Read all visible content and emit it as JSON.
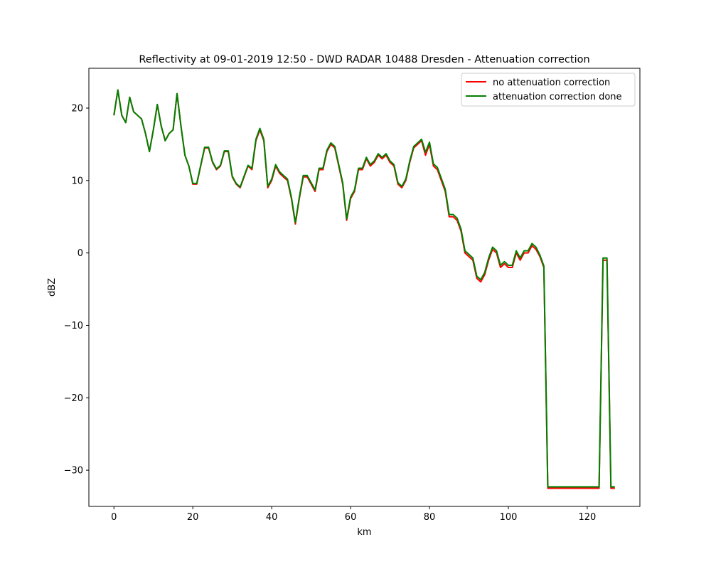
{
  "chart_data": {
    "type": "line",
    "title": "Reflectivity at 09-01-2019 12:50 - DWD RADAR 10488 Dresden - Attenuation correction",
    "xlabel": "km",
    "ylabel": "dBZ",
    "xlim": [
      -6.35,
      133.35
    ],
    "ylim": [
      -35,
      25.5
    ],
    "xticks": [
      0,
      20,
      40,
      60,
      80,
      100,
      120
    ],
    "yticks": [
      -30,
      -20,
      -10,
      0,
      10,
      20
    ],
    "xtick_labels": [
      "0",
      "20",
      "40",
      "60",
      "80",
      "100",
      "120"
    ],
    "ytick_labels": [
      "−30",
      "−20",
      "−10",
      "0",
      "10",
      "20"
    ],
    "grid": false,
    "legend_position": "top-right",
    "x": [
      0,
      1,
      2,
      3,
      4,
      5,
      6,
      7,
      8,
      9,
      10,
      11,
      12,
      13,
      14,
      15,
      16,
      17,
      18,
      19,
      20,
      21,
      22,
      23,
      24,
      25,
      26,
      27,
      28,
      29,
      30,
      31,
      32,
      33,
      34,
      35,
      36,
      37,
      38,
      39,
      40,
      41,
      42,
      43,
      44,
      45,
      46,
      47,
      48,
      49,
      50,
      51,
      52,
      53,
      54,
      55,
      56,
      57,
      58,
      59,
      60,
      61,
      62,
      63,
      64,
      65,
      66,
      67,
      68,
      69,
      70,
      71,
      72,
      73,
      74,
      75,
      76,
      77,
      78,
      79,
      80,
      81,
      82,
      83,
      84,
      85,
      86,
      87,
      88,
      89,
      90,
      91,
      92,
      93,
      94,
      95,
      96,
      97,
      98,
      99,
      100,
      101,
      102,
      103,
      104,
      105,
      106,
      107,
      108,
      109,
      110,
      111,
      112,
      113,
      114,
      115,
      116,
      117,
      118,
      119,
      120,
      121,
      122,
      123,
      124,
      125,
      126,
      127
    ],
    "series": [
      {
        "name": "no attenuation correction",
        "color": "#ff0000",
        "values": [
          19.0,
          22.5,
          19.0,
          18.0,
          21.5,
          19.5,
          19.0,
          18.5,
          16.5,
          14.0,
          17.0,
          20.5,
          17.5,
          15.5,
          16.5,
          17.0,
          22.0,
          17.5,
          13.5,
          12.0,
          9.5,
          9.5,
          12.0,
          14.5,
          14.5,
          12.5,
          11.5,
          12.0,
          14.0,
          14.0,
          10.5,
          9.5,
          9.0,
          10.5,
          12.0,
          11.5,
          15.5,
          17.0,
          15.5,
          9.0,
          10.0,
          12.0,
          11.0,
          10.5,
          10.0,
          7.5,
          4.0,
          7.5,
          10.5,
          10.5,
          9.5,
          8.5,
          11.5,
          11.5,
          14.0,
          15.0,
          14.5,
          12.0,
          9.5,
          4.5,
          7.5,
          8.5,
          11.5,
          11.5,
          13.0,
          12.0,
          12.5,
          13.5,
          13.0,
          13.5,
          12.5,
          12.0,
          9.5,
          9.0,
          10.0,
          12.5,
          14.5,
          15.0,
          15.5,
          13.5,
          15.0,
          12.0,
          11.5,
          10.0,
          8.5,
          5.0,
          5.0,
          4.5,
          3.0,
          0.0,
          -0.5,
          -1.0,
          -3.5,
          -4.0,
          -3.0,
          -1.0,
          0.5,
          0.0,
          -2.0,
          -1.5,
          -2.0,
          -2.0,
          0.0,
          -1.0,
          0.0,
          0.0,
          1.0,
          0.5,
          -0.5,
          -2.0,
          -32.5,
          -32.5,
          -32.5,
          -32.5,
          -32.5,
          -32.5,
          -32.5,
          -32.5,
          -32.5,
          -32.5,
          -32.5,
          -32.5,
          -32.5,
          -32.5,
          -1.0,
          -1.0,
          -32.5,
          -32.5
        ]
      },
      {
        "name": "attenuation correction done",
        "color": "#008000",
        "values": [
          19.0,
          22.5,
          19.0,
          18.0,
          21.5,
          19.5,
          19.0,
          18.5,
          16.5,
          14.0,
          17.0,
          20.5,
          17.5,
          15.5,
          16.5,
          17.0,
          22.0,
          17.5,
          13.5,
          12.0,
          9.6,
          9.6,
          12.1,
          14.6,
          14.6,
          12.6,
          11.6,
          12.1,
          14.1,
          14.1,
          10.6,
          9.6,
          9.1,
          10.6,
          12.1,
          11.7,
          15.7,
          17.2,
          15.7,
          9.2,
          10.2,
          12.2,
          11.2,
          10.7,
          10.2,
          7.7,
          4.2,
          7.7,
          10.7,
          10.7,
          9.7,
          8.7,
          11.7,
          11.7,
          14.2,
          15.2,
          14.7,
          12.2,
          9.7,
          4.7,
          7.7,
          8.7,
          11.7,
          11.7,
          13.2,
          12.2,
          12.7,
          13.7,
          13.2,
          13.7,
          12.7,
          12.2,
          9.7,
          9.2,
          10.2,
          12.7,
          14.7,
          15.2,
          15.7,
          13.9,
          15.3,
          12.3,
          11.8,
          10.3,
          8.8,
          5.3,
          5.3,
          4.8,
          3.3,
          0.3,
          -0.2,
          -0.7,
          -3.2,
          -3.7,
          -2.7,
          -0.7,
          0.8,
          0.3,
          -1.7,
          -1.2,
          -1.7,
          -1.7,
          0.3,
          -0.7,
          0.3,
          0.3,
          1.3,
          0.8,
          -0.3,
          -1.8,
          -32.3,
          -32.3,
          -32.3,
          -32.3,
          -32.3,
          -32.3,
          -32.3,
          -32.3,
          -32.3,
          -32.3,
          -32.3,
          -32.3,
          -32.3,
          -32.3,
          -0.7,
          -0.7,
          -32.3,
          -32.3
        ]
      }
    ]
  }
}
